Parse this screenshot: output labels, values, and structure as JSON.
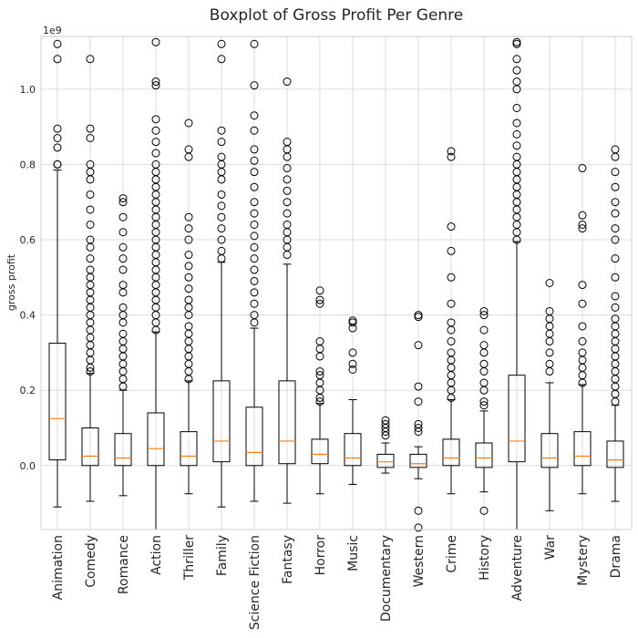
{
  "chart_data": {
    "type": "boxplot",
    "title": "Boxplot of Gross Profit Per Genre",
    "xlabel": "",
    "ylabel": "gross profit",
    "y_offset_label": "1e9",
    "ylim": [
      -0.17,
      1.14
    ],
    "yticks": [
      0.0,
      0.2,
      0.4,
      0.6,
      0.8,
      1.0
    ],
    "ytick_labels": [
      "0.0",
      "0.2",
      "0.4",
      "0.6",
      "0.8",
      "1.0"
    ],
    "grid": true,
    "categories": [
      "Animation",
      "Comedy",
      "Romance",
      "Action",
      "Thriller",
      "Family",
      "Science Fiction",
      "Fantasy",
      "Horror",
      "Music",
      "Documentary",
      "Western",
      "Crime",
      "History",
      "Adventure",
      "War",
      "Mystery",
      "Drama"
    ],
    "boxes": [
      {
        "whislo": -0.11,
        "q1": 0.015,
        "med": 0.125,
        "q3": 0.325,
        "whishi": 0.785,
        "fliers": [
          0.8,
          0.8,
          0.845,
          0.87,
          0.895,
          1.08,
          1.12
        ]
      },
      {
        "whislo": -0.095,
        "q1": 0.0,
        "med": 0.025,
        "q3": 0.1,
        "whishi": 0.245,
        "fliers": [
          0.25,
          0.26,
          0.28,
          0.3,
          0.32,
          0.34,
          0.36,
          0.38,
          0.4,
          0.42,
          0.44,
          0.46,
          0.48,
          0.5,
          0.52,
          0.55,
          0.58,
          0.6,
          0.64,
          0.68,
          0.72,
          0.76,
          0.78,
          0.8,
          0.87,
          0.895,
          1.08
        ]
      },
      {
        "whislo": -0.08,
        "q1": 0.0,
        "med": 0.02,
        "q3": 0.085,
        "whishi": 0.2,
        "fliers": [
          0.21,
          0.23,
          0.25,
          0.27,
          0.29,
          0.31,
          0.33,
          0.35,
          0.38,
          0.4,
          0.42,
          0.46,
          0.48,
          0.52,
          0.55,
          0.58,
          0.62,
          0.66,
          0.7,
          0.71
        ]
      },
      {
        "whislo": -0.17,
        "q1": 0.0,
        "med": 0.045,
        "q3": 0.14,
        "whishi": 0.355,
        "fliers": [
          0.36,
          0.38,
          0.4,
          0.42,
          0.44,
          0.46,
          0.48,
          0.5,
          0.52,
          0.54,
          0.56,
          0.58,
          0.6,
          0.62,
          0.64,
          0.66,
          0.68,
          0.7,
          0.72,
          0.74,
          0.76,
          0.78,
          0.8,
          0.83,
          0.86,
          0.89,
          0.92,
          1.01,
          1.02,
          1.125
        ]
      },
      {
        "whislo": -0.075,
        "q1": 0.0,
        "med": 0.025,
        "q3": 0.09,
        "whishi": 0.225,
        "fliers": [
          0.23,
          0.25,
          0.27,
          0.29,
          0.31,
          0.33,
          0.35,
          0.37,
          0.4,
          0.42,
          0.44,
          0.47,
          0.5,
          0.53,
          0.56,
          0.6,
          0.63,
          0.66,
          0.82,
          0.84,
          0.91
        ]
      },
      {
        "whislo": -0.11,
        "q1": 0.01,
        "med": 0.065,
        "q3": 0.225,
        "whishi": 0.54,
        "fliers": [
          0.55,
          0.57,
          0.6,
          0.63,
          0.66,
          0.69,
          0.72,
          0.76,
          0.78,
          0.8,
          0.82,
          0.86,
          0.89,
          1.08,
          1.12
        ]
      },
      {
        "whislo": -0.095,
        "q1": 0.0,
        "med": 0.035,
        "q3": 0.155,
        "whishi": 0.365,
        "fliers": [
          0.38,
          0.4,
          0.43,
          0.46,
          0.49,
          0.52,
          0.55,
          0.58,
          0.61,
          0.64,
          0.67,
          0.7,
          0.74,
          0.78,
          0.81,
          0.84,
          0.89,
          0.93,
          1.01,
          1.12
        ]
      },
      {
        "whislo": -0.1,
        "q1": 0.005,
        "med": 0.065,
        "q3": 0.225,
        "whishi": 0.535,
        "fliers": [
          0.56,
          0.58,
          0.6,
          0.62,
          0.64,
          0.67,
          0.7,
          0.73,
          0.76,
          0.79,
          0.82,
          0.84,
          0.86,
          1.02
        ]
      },
      {
        "whislo": -0.075,
        "q1": 0.005,
        "med": 0.03,
        "q3": 0.07,
        "whishi": 0.165,
        "fliers": [
          0.17,
          0.18,
          0.2,
          0.22,
          0.24,
          0.25,
          0.29,
          0.31,
          0.33,
          0.43,
          0.44,
          0.465
        ]
      },
      {
        "whislo": -0.05,
        "q1": 0.0,
        "med": 0.02,
        "q3": 0.085,
        "whishi": 0.175,
        "fliers": [
          0.255,
          0.27,
          0.3,
          0.365,
          0.38,
          0.385
        ]
      },
      {
        "whislo": -0.02,
        "q1": -0.005,
        "med": 0.01,
        "q3": 0.03,
        "whishi": 0.06,
        "fliers": [
          0.08,
          0.09,
          0.1,
          0.11,
          0.12
        ]
      },
      {
        "whislo": -0.035,
        "q1": -0.005,
        "med": 0.005,
        "q3": 0.03,
        "whishi": 0.05,
        "fliers": [
          0.09,
          0.1,
          0.11,
          0.17,
          0.21,
          0.32,
          0.395,
          0.4,
          -0.12,
          -0.165
        ]
      },
      {
        "whislo": -0.075,
        "q1": 0.0,
        "med": 0.02,
        "q3": 0.07,
        "whishi": 0.175,
        "fliers": [
          0.18,
          0.2,
          0.22,
          0.24,
          0.26,
          0.28,
          0.3,
          0.33,
          0.36,
          0.38,
          0.43,
          0.5,
          0.57,
          0.635,
          0.82,
          0.835
        ]
      },
      {
        "whislo": -0.07,
        "q1": -0.005,
        "med": 0.02,
        "q3": 0.06,
        "whishi": 0.145,
        "fliers": [
          0.16,
          0.17,
          0.2,
          0.22,
          0.25,
          0.27,
          0.3,
          0.32,
          0.36,
          0.4,
          0.41,
          -0.12
        ]
      },
      {
        "whislo": -0.17,
        "q1": 0.01,
        "med": 0.065,
        "q3": 0.24,
        "whishi": 0.595,
        "fliers": [
          0.6,
          0.62,
          0.64,
          0.66,
          0.68,
          0.7,
          0.72,
          0.74,
          0.76,
          0.78,
          0.8,
          0.82,
          0.85,
          0.88,
          0.91,
          0.95,
          1.0,
          1.02,
          1.05,
          1.08,
          1.12,
          1.125
        ]
      },
      {
        "whislo": -0.12,
        "q1": -0.005,
        "med": 0.02,
        "q3": 0.085,
        "whishi": 0.22,
        "fliers": [
          0.25,
          0.27,
          0.3,
          0.33,
          0.35,
          0.37,
          0.39,
          0.41,
          0.485
        ]
      },
      {
        "whislo": -0.075,
        "q1": 0.0,
        "med": 0.025,
        "q3": 0.09,
        "whishi": 0.215,
        "fliers": [
          0.22,
          0.24,
          0.26,
          0.28,
          0.3,
          0.33,
          0.37,
          0.43,
          0.48,
          0.63,
          0.64,
          0.665,
          0.79
        ]
      },
      {
        "whislo": -0.095,
        "q1": -0.005,
        "med": 0.015,
        "q3": 0.065,
        "whishi": 0.16,
        "fliers": [
          0.17,
          0.19,
          0.21,
          0.23,
          0.25,
          0.27,
          0.29,
          0.31,
          0.33,
          0.35,
          0.37,
          0.39,
          0.42,
          0.45,
          0.5,
          0.55,
          0.6,
          0.63,
          0.67,
          0.7,
          0.74,
          0.78,
          0.82,
          0.84
        ]
      }
    ]
  }
}
